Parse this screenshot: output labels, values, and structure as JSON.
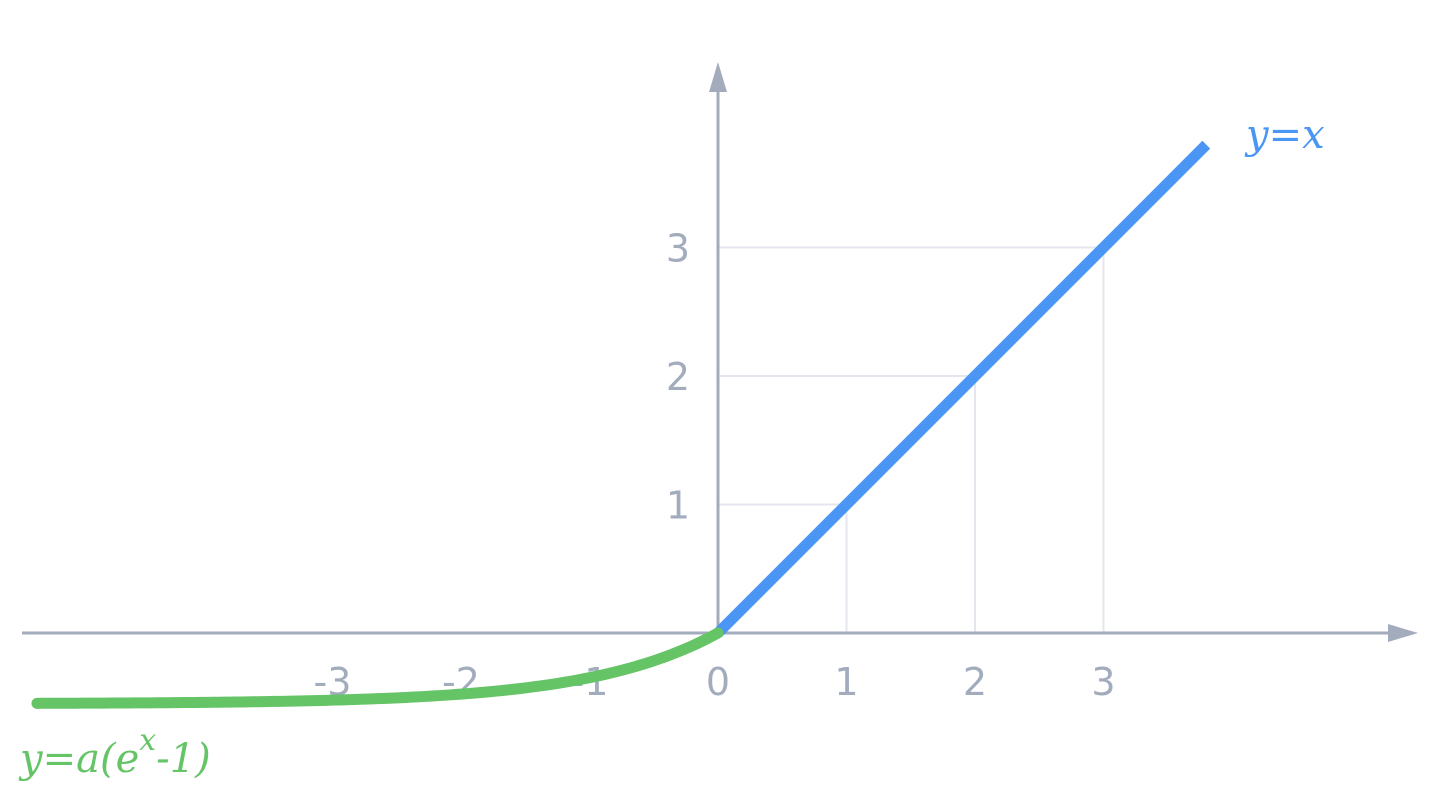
{
  "chart_data": {
    "type": "line",
    "title": "",
    "xlabel": "",
    "ylabel": "",
    "xlim": [
      -5.3,
      5.3
    ],
    "ylim": [
      -0.6,
      4.4
    ],
    "grid": true,
    "x_ticks": [
      {
        "value": -3,
        "label": "-3"
      },
      {
        "value": -2,
        "label": "-2"
      },
      {
        "value": -1,
        "label": "-1"
      },
      {
        "value": 0,
        "label": "0"
      },
      {
        "value": 1,
        "label": "1"
      },
      {
        "value": 2,
        "label": "2"
      },
      {
        "value": 3,
        "label": "3"
      }
    ],
    "y_ticks": [
      {
        "value": 1,
        "label": "1"
      },
      {
        "value": 2,
        "label": "2"
      },
      {
        "value": 3,
        "label": "3"
      }
    ],
    "series": [
      {
        "name": "y=x",
        "color": "#4b96f5",
        "function": "identity",
        "domain": [
          0,
          3.8
        ],
        "x": [
          0,
          1,
          2,
          3,
          3.8
        ],
        "y": [
          0,
          1,
          2,
          3,
          3.8
        ]
      },
      {
        "name": "y=a(e^x-1)",
        "color": "#64c466",
        "function": "elu",
        "a": 0.55,
        "domain": [
          -5.3,
          0
        ],
        "x": [
          -5.3,
          -4,
          -3,
          -2,
          -1,
          -0.5,
          0
        ],
        "y": [
          -0.547,
          -0.54,
          -0.523,
          -0.476,
          -0.348,
          -0.216,
          0
        ]
      }
    ],
    "labels": {
      "linear": "y=x",
      "elu_prefix": "y=a(e",
      "elu_sup": "x",
      "elu_suffix": "-1)"
    }
  }
}
